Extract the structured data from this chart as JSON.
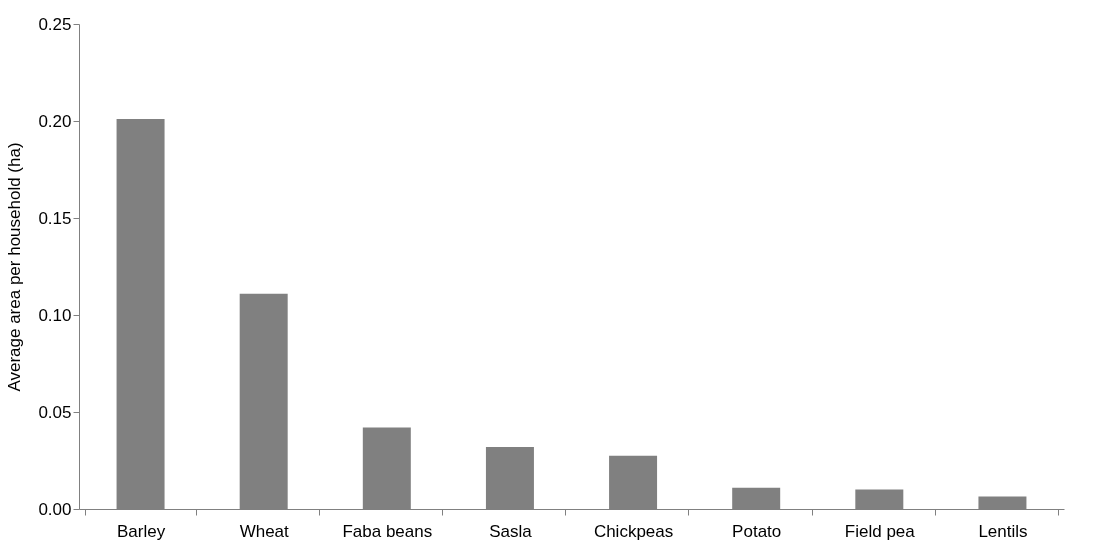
{
  "chart_data": {
    "type": "bar",
    "ylabel": "Average area per household (ha)",
    "categories": [
      "Barley",
      "Wheat",
      "Faba beans",
      "Sasla",
      "Chickpeas",
      "Potato",
      "Field pea",
      "Lentils"
    ],
    "values": [
      0.201,
      0.111,
      0.042,
      0.032,
      0.0275,
      0.011,
      0.01,
      0.0065
    ],
    "color": "#808080",
    "ylim": [
      0,
      0.25
    ],
    "yticks": [
      {
        "value": 0,
        "label": "0.00"
      },
      {
        "value": 0.05,
        "label": "0.05"
      },
      {
        "value": 0.1,
        "label": "0.10"
      },
      {
        "value": 0.15,
        "label": "0.15"
      },
      {
        "value": 0.2,
        "label": "0.20"
      },
      {
        "value": 0.25,
        "label": "0.25"
      }
    ],
    "grid": false
  }
}
